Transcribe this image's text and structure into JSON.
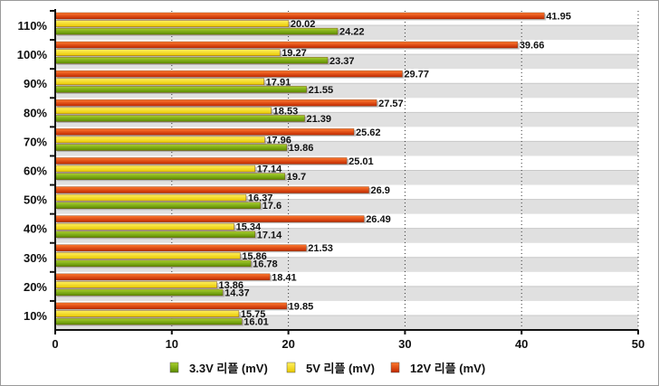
{
  "chart_data": {
    "type": "bar",
    "orientation": "horizontal",
    "categories": [
      "10%",
      "20%",
      "30%",
      "40%",
      "50%",
      "60%",
      "70%",
      "80%",
      "90%",
      "100%",
      "110%"
    ],
    "series": [
      {
        "name": "3.3V 리플 (mV)",
        "color": "#7aaa10",
        "values": [
          16.01,
          14.37,
          16.78,
          17.14,
          17.6,
          19.7,
          19.86,
          21.39,
          21.55,
          23.37,
          24.22
        ]
      },
      {
        "name": "5V 리플 (mV)",
        "color": "#f5e020",
        "values": [
          15.75,
          13.86,
          15.86,
          15.34,
          16.37,
          17.14,
          17.96,
          18.53,
          17.91,
          19.27,
          20.02
        ]
      },
      {
        "name": "12V 리플 (mV)",
        "color": "#e8460a",
        "values": [
          19.85,
          18.41,
          21.53,
          26.49,
          26.9,
          25.01,
          25.62,
          27.57,
          29.77,
          39.66,
          41.95
        ]
      }
    ],
    "xlim": [
      0,
      50
    ],
    "xticks": [
      "0",
      "10",
      "20",
      "30",
      "40",
      "50"
    ],
    "grid": true,
    "legend": "bottom",
    "title": "",
    "xlabel": "",
    "ylabel": ""
  }
}
